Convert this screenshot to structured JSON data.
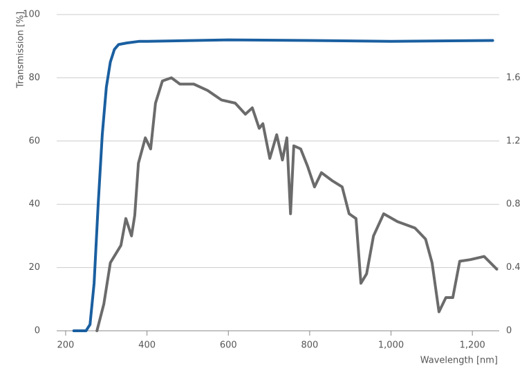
{
  "chart_data": {
    "type": "line",
    "xlabel": "Wavelength [nm]",
    "ylabel": "Transmission [%]",
    "xlim": [
      178,
      1266
    ],
    "xticks": [
      200,
      400,
      600,
      800,
      {
        "value": 1000,
        "label": "1,000"
      },
      {
        "value": 1200,
        "label": "1,200"
      }
    ],
    "ylim": [
      0,
      100
    ],
    "yticks": [
      0,
      20,
      40,
      60,
      80,
      100
    ],
    "y2lim": [
      0,
      2.0
    ],
    "y2ticks": [
      0,
      0.4,
      0.8,
      1.2,
      1.6
    ],
    "grid": true,
    "series": [
      {
        "color": "#1a5fa0",
        "x": [
          220,
          250,
          260,
          270,
          280,
          290,
          300,
          310,
          320,
          330,
          350,
          380,
          400,
          600,
          800,
          1000,
          1250
        ],
        "values": [
          0,
          0,
          2,
          15,
          40,
          62,
          77,
          85,
          89,
          90.5,
          91,
          91.5,
          91.5,
          92,
          91.8,
          91.5,
          91.8
        ]
      },
      {
        "color": "#6b6b6b",
        "axis": "y2",
        "x": [
          277,
          294,
          310,
          336,
          348,
          362,
          370,
          379,
          396,
          409,
          421,
          438,
          460,
          481,
          515,
          549,
          583,
          617,
          642,
          659,
          676,
          685,
          702,
          719,
          733,
          744,
          753,
          761,
          778,
          795,
          812,
          829,
          855,
          880,
          897,
          914,
          926,
          940,
          957,
          982,
          1016,
          1059,
          1085,
          1101,
          1118,
          1135,
          1152,
          1169,
          1195,
          1229,
          1260
        ],
        "values": [
          0,
          0.17,
          0.43,
          0.54,
          0.71,
          0.6,
          0.73,
          1.06,
          1.22,
          1.15,
          1.44,
          1.58,
          1.6,
          1.56,
          1.56,
          1.52,
          1.46,
          1.44,
          1.37,
          1.41,
          1.28,
          1.31,
          1.09,
          1.24,
          1.08,
          1.22,
          0.74,
          1.17,
          1.15,
          1.04,
          0.91,
          1.0,
          0.95,
          0.91,
          0.74,
          0.71,
          0.3,
          0.36,
          0.6,
          0.74,
          0.69,
          0.65,
          0.58,
          0.43,
          0.12,
          0.21,
          0.21,
          0.44,
          0.45,
          0.47,
          0.39
        ]
      }
    ]
  }
}
